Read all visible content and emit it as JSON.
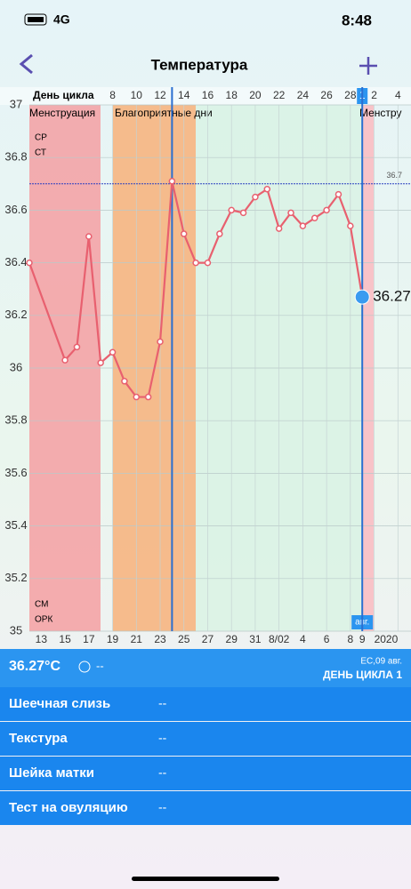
{
  "status_bar": {
    "network": "4G",
    "time": "8:48"
  },
  "header": {
    "title": "Температура"
  },
  "chart_data": {
    "type": "line",
    "color": "#e8606f",
    "x": [
      1,
      4,
      5,
      6,
      7,
      8,
      9,
      10,
      11,
      12,
      13,
      14,
      15,
      16,
      17,
      18,
      19,
      20,
      21,
      22,
      23,
      24,
      25,
      26,
      27,
      28,
      29
    ],
    "values": [
      36.4,
      36.03,
      36.08,
      36.5,
      36.02,
      36.06,
      35.95,
      35.89,
      35.89,
      36.1,
      36.71,
      36.51,
      36.4,
      36.4,
      36.51,
      36.6,
      36.59,
      36.65,
      36.68,
      36.53,
      36.59,
      36.54,
      36.57,
      36.6,
      36.66,
      36.54,
      36.27
    ],
    "xlim": [
      1,
      33.1
    ],
    "ylim": [
      35,
      37
    ],
    "yticks": [
      35,
      35.2,
      35.4,
      35.6,
      35.8,
      36,
      36.2,
      36.4,
      36.6,
      36.8,
      37
    ],
    "grid": true,
    "day_axis_label": "День цикла",
    "top_ticks": [
      8,
      10,
      12,
      14,
      16,
      18,
      20,
      22,
      24,
      26,
      28,
      {
        "value": 29,
        "label": "1"
      },
      {
        "value": 30,
        "label": "2"
      },
      {
        "value": 32,
        "label": "4"
      }
    ],
    "xticks": [
      {
        "value": 2,
        "label": "13"
      },
      {
        "value": 4,
        "label": "15"
      },
      {
        "value": 6,
        "label": "17"
      },
      {
        "value": 8,
        "label": "19"
      },
      {
        "value": 10,
        "label": "21"
      },
      {
        "value": 12,
        "label": "23"
      },
      {
        "value": 14,
        "label": "25"
      },
      {
        "value": 16,
        "label": "27"
      },
      {
        "value": 18,
        "label": "29"
      },
      {
        "value": 20,
        "label": "31"
      },
      {
        "value": 22,
        "label": "8/02"
      },
      {
        "value": 24,
        "label": "4"
      },
      {
        "value": 26,
        "label": "6"
      },
      {
        "value": 28,
        "label": "8"
      },
      {
        "value": 29,
        "label": "9"
      },
      {
        "value": 31,
        "label": "2020"
      }
    ],
    "month_label": "авг.",
    "cover_line": 36.7,
    "phase_labels": [
      "Менструация",
      "Благоприятные дни",
      "Менстру"
    ],
    "row_labels": [
      "СР",
      "СТ",
      "СМ",
      "ОРК"
    ]
  },
  "panel": {
    "temperature": "36.27°C",
    "mood": "--",
    "date": "ЕС,09 авг.",
    "cycle_day": "ДЕНЬ ЦИКЛА 1",
    "rows": [
      [
        "Шеечная слизь",
        "--"
      ],
      [
        "Текстура",
        "--"
      ],
      [
        "Шейка матки",
        "--"
      ],
      [
        "Тест на овуляцию",
        "--"
      ]
    ]
  }
}
